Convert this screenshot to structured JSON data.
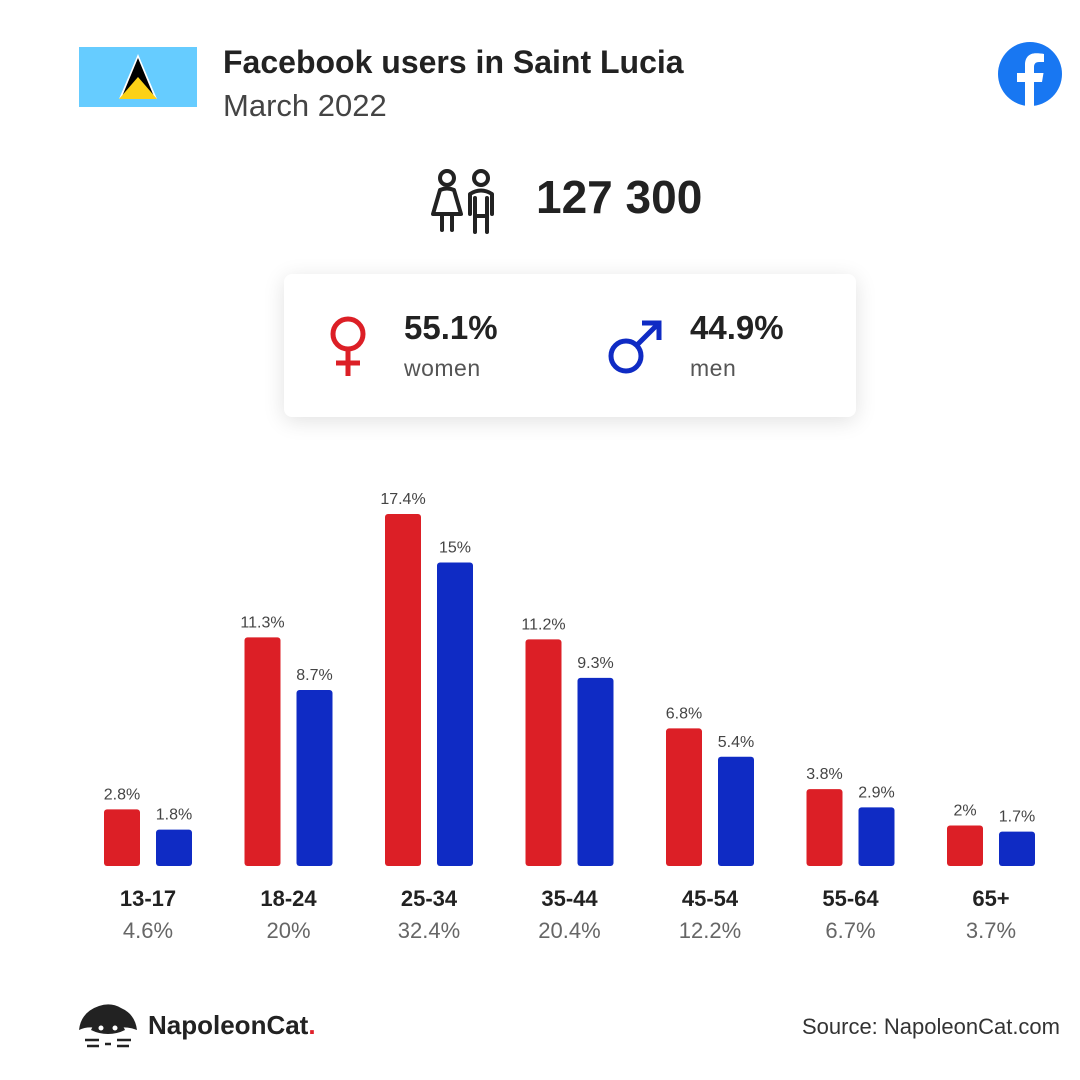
{
  "header": {
    "title": "Facebook users in Saint Lucia",
    "subtitle": "March 2022"
  },
  "total": {
    "value": "127 300"
  },
  "gender": {
    "women_pct": "55.1%",
    "women_label": "women",
    "men_pct": "44.9%",
    "men_label": "men"
  },
  "colors": {
    "women": "#dc1f26",
    "men": "#0f2bc4",
    "facebook": "#1877f2",
    "flag_blue": "#66ccff",
    "flag_yellow": "#fcd116"
  },
  "chart_data": {
    "type": "bar",
    "categories": [
      "13-17",
      "18-24",
      "25-34",
      "35-44",
      "45-54",
      "55-64",
      "65+"
    ],
    "category_totals": [
      "4.6%",
      "20%",
      "32.4%",
      "20.4%",
      "12.2%",
      "6.7%",
      "3.7%"
    ],
    "series": [
      {
        "name": "women",
        "values": [
          2.8,
          11.3,
          17.4,
          11.2,
          6.8,
          3.8,
          2
        ],
        "labels": [
          "2.8%",
          "11.3%",
          "17.4%",
          "11.2%",
          "6.8%",
          "3.8%",
          "2%"
        ]
      },
      {
        "name": "men",
        "values": [
          1.8,
          8.7,
          15,
          9.3,
          5.4,
          2.9,
          1.7
        ],
        "labels": [
          "1.8%",
          "8.7%",
          "15%",
          "9.3%",
          "5.4%",
          "2.9%",
          "1.7%"
        ]
      }
    ],
    "ylim": [
      0,
      17.4
    ],
    "grid": false
  },
  "footer": {
    "brand": "NapoleonCat",
    "brand_dot": ".",
    "source": "Source: NapoleonCat.com"
  }
}
